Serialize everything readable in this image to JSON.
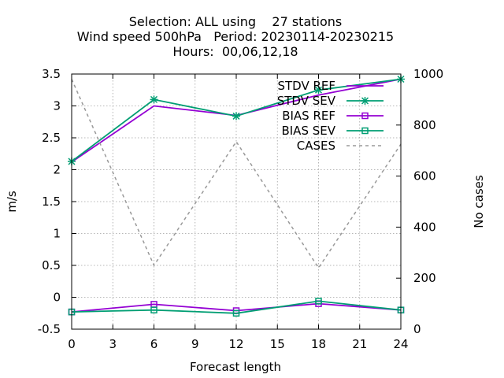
{
  "title": {
    "line1": "Selection: ALL using    27 stations",
    "line2": "Wind speed 500hPa   Period: 20230114-20230215",
    "line3": "Hours:  00,06,12,18"
  },
  "chart_data": {
    "type": "line",
    "xlabel": "Forecast length",
    "ylabel": "m/s",
    "y2label": "No cases",
    "xlim": [
      0,
      24
    ],
    "ylim": [
      -0.5,
      3.5
    ],
    "y2lim": [
      0,
      1000
    ],
    "grid": true,
    "legend_position": "top-right",
    "x_ticks": [
      "0",
      "3",
      "6",
      "9",
      "12",
      "15",
      "18",
      "21",
      "24"
    ],
    "y_ticks": [
      "-0.5",
      "0",
      "0.5",
      "1",
      "1.5",
      "2",
      "2.5",
      "3",
      "3.5"
    ],
    "y2_ticks": [
      "0",
      "200",
      "400",
      "600",
      "800",
      "1000"
    ],
    "x": [
      0,
      6,
      12,
      18,
      24
    ],
    "series": [
      {
        "name": "STDV REF",
        "axis": "y1",
        "color": "#9400d3",
        "marker": "none",
        "values": [
          2.12,
          3.0,
          2.85,
          3.17,
          3.42
        ]
      },
      {
        "name": "STDV SEV",
        "axis": "y1",
        "color": "#009e73",
        "marker": "star",
        "values": [
          2.13,
          3.1,
          2.84,
          3.25,
          3.42
        ]
      },
      {
        "name": "BIAS REF",
        "axis": "y1",
        "color": "#9400d3",
        "marker": "square",
        "values": [
          -0.23,
          -0.11,
          -0.21,
          -0.1,
          -0.2
        ]
      },
      {
        "name": "BIAS SEV",
        "axis": "y1",
        "color": "#009e73",
        "marker": "square",
        "values": [
          -0.23,
          -0.2,
          -0.25,
          -0.06,
          -0.2
        ]
      },
      {
        "name": "CASES",
        "axis": "y2",
        "color": "#999999",
        "marker": "none",
        "dashed": true,
        "values": [
          980,
          250,
          735,
          240,
          725
        ]
      }
    ]
  }
}
